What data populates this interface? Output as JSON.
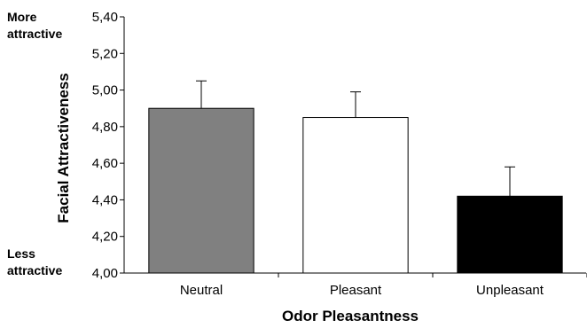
{
  "chart_data": {
    "type": "bar",
    "categories": [
      "Neutral",
      "Pleasant",
      "Unpleasant"
    ],
    "values": [
      4.9,
      4.85,
      4.42
    ],
    "error_upper": [
      5.05,
      4.99,
      4.58
    ],
    "colors": [
      "#808080",
      "#ffffff",
      "#000000"
    ],
    "xlabel": "Odor Pleasantness",
    "ylabel": "Facial Attractiveness",
    "ylim": [
      4.0,
      5.4
    ],
    "yticks": [
      "4,00",
      "4,20",
      "4,40",
      "4,60",
      "4,80",
      "5,00",
      "5,20",
      "5,40"
    ],
    "annotations": {
      "top": [
        "More",
        "attractive"
      ],
      "bottom": [
        "Less",
        "attractive"
      ]
    },
    "grid": false,
    "legend": "none"
  }
}
